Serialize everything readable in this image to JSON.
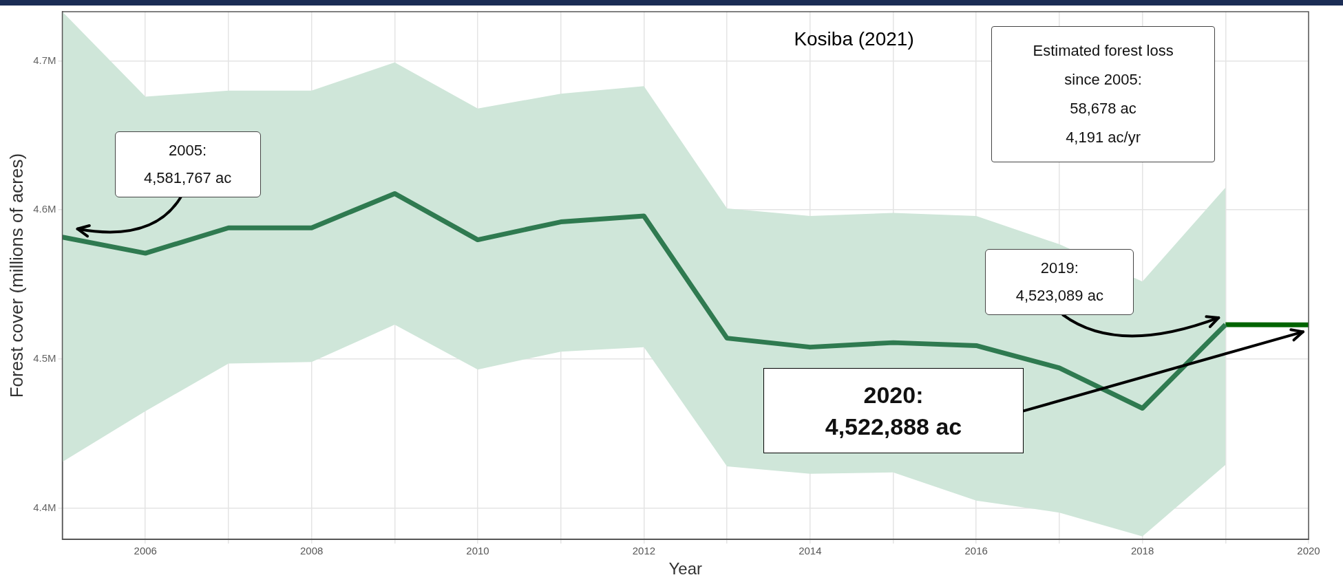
{
  "chart_data": {
    "type": "line",
    "xlabel": "Year",
    "ylabel": "Forest cover (millions of acres)",
    "xlim": [
      2005,
      2020
    ],
    "xticks": [
      {
        "value": 2006,
        "label": "2006"
      },
      {
        "value": 2007,
        "label": null
      },
      {
        "value": 2008,
        "label": "2008"
      },
      {
        "value": 2009,
        "label": null
      },
      {
        "value": 2010,
        "label": "2010"
      },
      {
        "value": 2011,
        "label": null
      },
      {
        "value": 2012,
        "label": "2012"
      },
      {
        "value": 2013,
        "label": null
      },
      {
        "value": 2014,
        "label": "2014"
      },
      {
        "value": 2015,
        "label": null
      },
      {
        "value": 2016,
        "label": "2016"
      },
      {
        "value": 2017,
        "label": null
      },
      {
        "value": 2018,
        "label": "2018"
      },
      {
        "value": 2019,
        "label": null
      },
      {
        "value": 2020,
        "label": "2020"
      }
    ],
    "ylim": [
      4.379,
      4.733
    ],
    "yticks": [
      {
        "value": 4.4,
        "label": "4.4M"
      },
      {
        "value": 4.5,
        "label": "4.5M"
      },
      {
        "value": 4.6,
        "label": "4.6M"
      },
      {
        "value": 4.7,
        "label": "4.7M"
      }
    ],
    "grid": true,
    "legend": false,
    "marker": "none",
    "line_style": "solid",
    "series": [
      {
        "color": "#2f7a50",
        "x": [
          2005,
          2006,
          2007,
          2008,
          2009,
          2010,
          2011,
          2012,
          2013,
          2014,
          2015,
          2016,
          2017,
          2018,
          2019
        ],
        "values": [
          4.581767,
          4.571,
          4.588,
          4.588,
          4.611,
          4.58,
          4.592,
          4.596,
          4.514,
          4.508,
          4.511,
          4.509,
          4.494,
          4.467,
          4.523089
        ],
        "lower": [
          4.431,
          4.465,
          4.497,
          4.498,
          4.523,
          4.493,
          4.505,
          4.508,
          4.428,
          4.423,
          4.424,
          4.405,
          4.397,
          4.381,
          4.429
        ],
        "upper": [
          4.733,
          4.676,
          4.68,
          4.68,
          4.699,
          4.668,
          4.678,
          4.683,
          4.601,
          4.596,
          4.598,
          4.596,
          4.577,
          4.552,
          4.615
        ]
      },
      {
        "color": "#006400",
        "x": [
          2019,
          2020
        ],
        "values": [
          4.523089,
          4.522888
        ]
      }
    ],
    "annotations": [
      "2005:\n4,581,767 ac",
      "2019:\n4,523,089 ac",
      "2020:\n4,522,888 ac",
      "Kosiba (2021)",
      "Estimated forest loss\nsince 2005:\n58,678 ac\n4,191 ac/yr"
    ]
  }
}
